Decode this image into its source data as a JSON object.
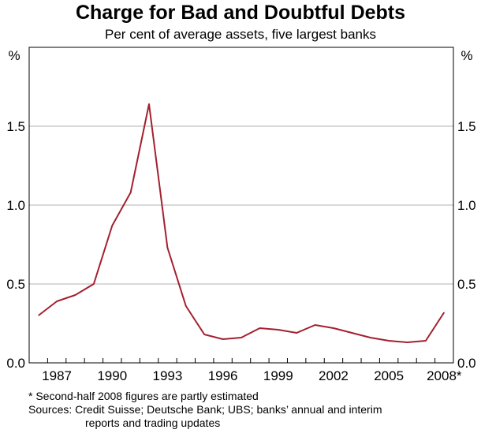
{
  "chart_data": {
    "type": "line",
    "title": "Charge for Bad and Doubtful Debts",
    "subtitle": "Per cent of average assets, five largest banks",
    "ylabel_left": "%",
    "ylabel_right": "%",
    "ylim": [
      0,
      2.0
    ],
    "yticks": [
      0,
      0.5,
      1.0,
      1.5
    ],
    "ytick_labels": [
      "0.0",
      "0.5",
      "1.0",
      "1.5"
    ],
    "xlim": [
      1985.5,
      2008.5
    ],
    "xticks": [
      1987,
      1990,
      1993,
      1996,
      1999,
      2002,
      2005,
      2008
    ],
    "xtick_labels": [
      "1987",
      "1990",
      "1993",
      "1996",
      "1999",
      "2002",
      "2005",
      "2008*"
    ],
    "grid": true,
    "line_color": "#a3202f",
    "series": [
      {
        "x": [
          1986,
          1987,
          1988,
          1989,
          1990,
          1991,
          1992,
          1993,
          1994,
          1995,
          1996,
          1997,
          1998,
          1999,
          2000,
          2001,
          2002,
          2003,
          2004,
          2005,
          2006,
          2007,
          2008
        ],
        "values": [
          0.3,
          0.39,
          0.43,
          0.5,
          0.87,
          1.08,
          1.64,
          0.73,
          0.36,
          0.18,
          0.15,
          0.16,
          0.22,
          0.21,
          0.19,
          0.24,
          0.22,
          0.19,
          0.16,
          0.14,
          0.13,
          0.14,
          0.32
        ]
      }
    ]
  },
  "footnotes": {
    "note": "*  Second-half 2008 figures are partly estimated",
    "sources_line1": "Sources: Credit Suisse; Deutsche Bank; UBS; banks’ annual and interim",
    "sources_line2": "reports and trading updates"
  }
}
